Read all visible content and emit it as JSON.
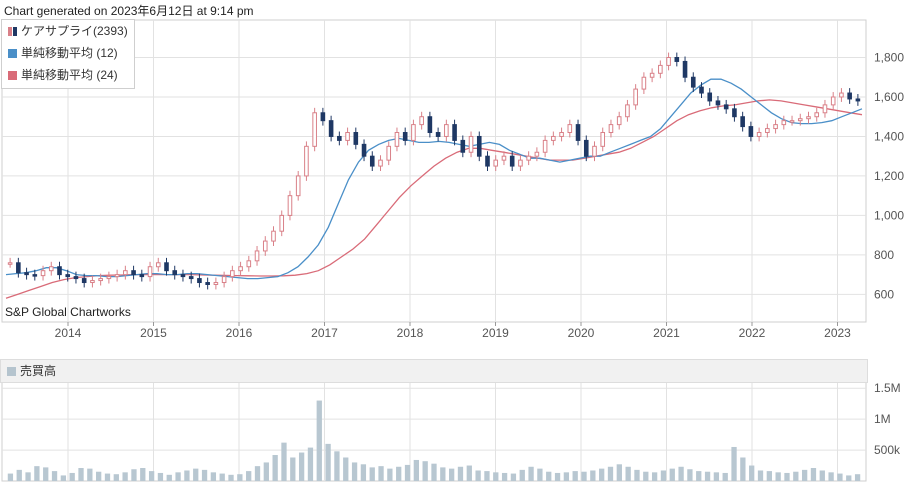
{
  "header": {
    "generated": "Chart generated on 2023年6月12日 at 9:14 pm"
  },
  "legend": [
    {
      "label": "ケアサプライ(2393)",
      "color": "#d98088",
      "color2": "#1f3864"
    },
    {
      "label": "単純移動平均 (12)",
      "color": "#4a8fc8"
    },
    {
      "label": "単純移動平均 (24)",
      "color": "#d96b78"
    }
  ],
  "credit": "S&P Global Chartworks",
  "volume_header": {
    "label": "売買高",
    "color": "#b5c4ce"
  },
  "colors": {
    "up": "#d98088",
    "down": "#1f3864",
    "ma12": "#4a8fc8",
    "ma24": "#d96b78",
    "grid": "#e2e2e2",
    "volume": "#b8c7d1"
  },
  "chart_data": [
    {
      "type": "candlestick",
      "title": "ケアサプライ(2393)",
      "x_ticks": [
        "2014",
        "2015",
        "2016",
        "2017",
        "2018",
        "2019",
        "2020",
        "2021",
        "2022",
        "2023"
      ],
      "y_ticks": [
        "600",
        "800",
        "1,000",
        "1,200",
        "1,400",
        "1,600",
        "1,800"
      ],
      "ylim": [
        460,
        1990
      ],
      "series": [
        {
          "name": "ケアサプライ(2393)",
          "values": [
            760,
            710,
            700,
            695,
            720,
            740,
            700,
            690,
            680,
            660,
            670,
            680,
            690,
            700,
            720,
            700,
            690,
            740,
            760,
            720,
            700,
            690,
            680,
            660,
            650,
            660,
            690,
            720,
            740,
            770,
            820,
            870,
            920,
            1000,
            1100,
            1200,
            1350,
            1520,
            1480,
            1400,
            1380,
            1420,
            1360,
            1300,
            1250,
            1280,
            1350,
            1420,
            1380,
            1460,
            1500,
            1420,
            1400,
            1460,
            1380,
            1320,
            1400,
            1300,
            1250,
            1280,
            1300,
            1250,
            1280,
            1300,
            1320,
            1380,
            1400,
            1420,
            1460,
            1380,
            1300,
            1350,
            1420,
            1460,
            1500,
            1560,
            1640,
            1700,
            1720,
            1760,
            1800,
            1780,
            1700,
            1650,
            1620,
            1580,
            1560,
            1540,
            1500,
            1450,
            1400,
            1420,
            1440,
            1460,
            1480,
            1480,
            1490,
            1500,
            1520,
            1560,
            1600,
            1620,
            1590,
            1580
          ]
        },
        {
          "name": "単純移動平均 (12)",
          "values": [
            700,
            705,
            710,
            720,
            735,
            735,
            720,
            700,
            695,
            695,
            690,
            690,
            695,
            700,
            705,
            705,
            700,
            700,
            705,
            705,
            700,
            695,
            690,
            685,
            680,
            680,
            685,
            690,
            710,
            740,
            790,
            850,
            940,
            1060,
            1180,
            1270,
            1330,
            1360,
            1380,
            1390,
            1380,
            1370,
            1370,
            1375,
            1370,
            1360,
            1350,
            1360,
            1370,
            1360,
            1330,
            1310,
            1290,
            1290,
            1280,
            1270,
            1280,
            1290,
            1300,
            1300,
            1320,
            1340,
            1360,
            1380,
            1400,
            1440,
            1500,
            1560,
            1620,
            1660,
            1690,
            1690,
            1670,
            1640,
            1600,
            1560,
            1520,
            1490,
            1470,
            1465,
            1465,
            1470,
            1480,
            1500,
            1520,
            1540
          ]
        },
        {
          "name": "単純移動平均 (24)",
          "values": [
            580,
            600,
            620,
            640,
            660,
            675,
            685,
            690,
            695,
            697,
            698,
            700,
            700,
            700,
            700,
            700,
            700,
            698,
            697,
            696,
            695,
            694,
            693,
            693,
            694,
            697,
            705,
            720,
            750,
            790,
            830,
            880,
            950,
            1020,
            1090,
            1150,
            1200,
            1250,
            1290,
            1320,
            1340,
            1340,
            1330,
            1320,
            1310,
            1300,
            1290,
            1280,
            1280,
            1280,
            1290,
            1300,
            1310,
            1320,
            1340,
            1370,
            1400,
            1440,
            1480,
            1510,
            1530,
            1545,
            1555,
            1560,
            1570,
            1580,
            1585,
            1580,
            1570,
            1560,
            1550,
            1540,
            1530,
            1520,
            1510
          ]
        }
      ],
      "grid": true,
      "legend_position": "top-left"
    },
    {
      "type": "bar",
      "title": "売買高",
      "y_ticks": [
        "500k",
        "1M",
        "1.5M"
      ],
      "ylim": [
        0,
        1600000
      ],
      "series": [
        {
          "name": "売買高",
          "values": [
            120000,
            180000,
            140000,
            240000,
            220000,
            160000,
            90000,
            130000,
            210000,
            200000,
            150000,
            120000,
            110000,
            140000,
            190000,
            210000,
            160000,
            130000,
            100000,
            140000,
            170000,
            200000,
            180000,
            140000,
            120000,
            100000,
            110000,
            160000,
            240000,
            300000,
            420000,
            620000,
            380000,
            460000,
            540000,
            1300000,
            600000,
            480000,
            380000,
            300000,
            270000,
            220000,
            240000,
            200000,
            230000,
            260000,
            340000,
            320000,
            280000,
            220000,
            200000,
            230000,
            250000,
            170000,
            160000,
            140000,
            130000,
            120000,
            180000,
            230000,
            200000,
            150000,
            130000,
            140000,
            160000,
            150000,
            170000,
            200000,
            230000,
            270000,
            230000,
            180000,
            150000,
            140000,
            170000,
            200000,
            230000,
            190000,
            160000,
            150000,
            140000,
            130000,
            550000,
            380000,
            250000,
            170000,
            160000,
            140000,
            130000,
            150000,
            180000,
            210000,
            170000,
            140000,
            120000,
            90000,
            110000
          ]
        }
      ]
    }
  ]
}
